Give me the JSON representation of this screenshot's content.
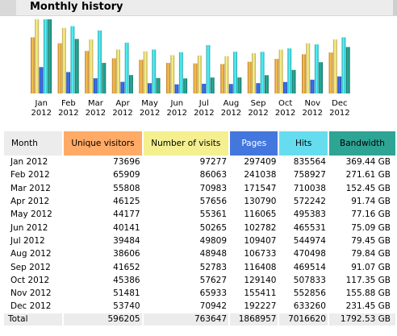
{
  "header": {
    "title": "Monthly history"
  },
  "table": {
    "headers": {
      "month": "Month",
      "unique": "Unique visitors",
      "visits": "Number of visits",
      "pages": "Pages",
      "hits": "Hits",
      "bandwidth": "Bandwidth"
    },
    "total": {
      "label": "Total",
      "unique": "596205",
      "visits": "763647",
      "pages": "1868957",
      "hits": "7016620",
      "bandwidth": "1792.53 GB"
    }
  },
  "colors": {
    "unique": "#f0a040",
    "visits": "#f0d070",
    "pages": "#3060d0",
    "hits": "#40d0e0",
    "bandwidth": "#209080"
  },
  "chart_data": {
    "type": "bar",
    "categories": [
      "Jan 2012",
      "Feb 2012",
      "Mar 2012",
      "Apr 2012",
      "May 2012",
      "Jun 2012",
      "Jul 2012",
      "Aug 2012",
      "Sep 2012",
      "Oct 2012",
      "Nov 2012",
      "Dec 2012"
    ],
    "category_lines": [
      [
        "Jan",
        "2012"
      ],
      [
        "Feb",
        "2012"
      ],
      [
        "Mar",
        "2012"
      ],
      [
        "Apr",
        "2012"
      ],
      [
        "May",
        "2012"
      ],
      [
        "Jun",
        "2012"
      ],
      [
        "Jul",
        "2012"
      ],
      [
        "Aug",
        "2012"
      ],
      [
        "Sep",
        "2012"
      ],
      [
        "Oct",
        "2012"
      ],
      [
        "Nov",
        "2012"
      ],
      [
        "Dec",
        "2012"
      ]
    ],
    "series": [
      {
        "name": "Unique visitors",
        "values": [
          73696,
          65909,
          55808,
          46125,
          44177,
          40141,
          39484,
          38606,
          41652,
          45386,
          51481,
          53740
        ]
      },
      {
        "name": "Number of visits",
        "values": [
          97277,
          86063,
          70983,
          57656,
          55361,
          50265,
          49809,
          48948,
          52783,
          57627,
          65933,
          70942
        ]
      },
      {
        "name": "Pages",
        "values": [
          297409,
          241038,
          171547,
          130790,
          116065,
          102782,
          109407,
          106733,
          116408,
          129140,
          155411,
          192227
        ]
      },
      {
        "name": "Hits",
        "values": [
          835564,
          758927,
          710038,
          572242,
          495383,
          465531,
          544974,
          470498,
          469514,
          507833,
          552856,
          633260
        ]
      },
      {
        "name": "Bandwidth",
        "values": [
          369.44,
          271.61,
          152.45,
          91.74,
          77.16,
          75.09,
          79.45,
          79.84,
          91.07,
          117.35,
          155.88,
          231.45
        ],
        "unit": "GB"
      }
    ],
    "bandwidth_labels": [
      "369.44 GB",
      "271.61 GB",
      "152.45 GB",
      "91.74 GB",
      "77.16 GB",
      "75.09 GB",
      "79.45 GB",
      "79.84 GB",
      "91.07 GB",
      "117.35 GB",
      "155.88 GB",
      "231.45 GB"
    ],
    "scale_groups": [
      {
        "series": [
          "Unique visitors",
          "Number of visits"
        ],
        "max": 97277
      },
      {
        "series": [
          "Pages",
          "Hits"
        ],
        "max": 835564
      },
      {
        "series": [
          "Bandwidth"
        ],
        "max": 369.44
      }
    ],
    "legend": "none",
    "grid": false
  }
}
